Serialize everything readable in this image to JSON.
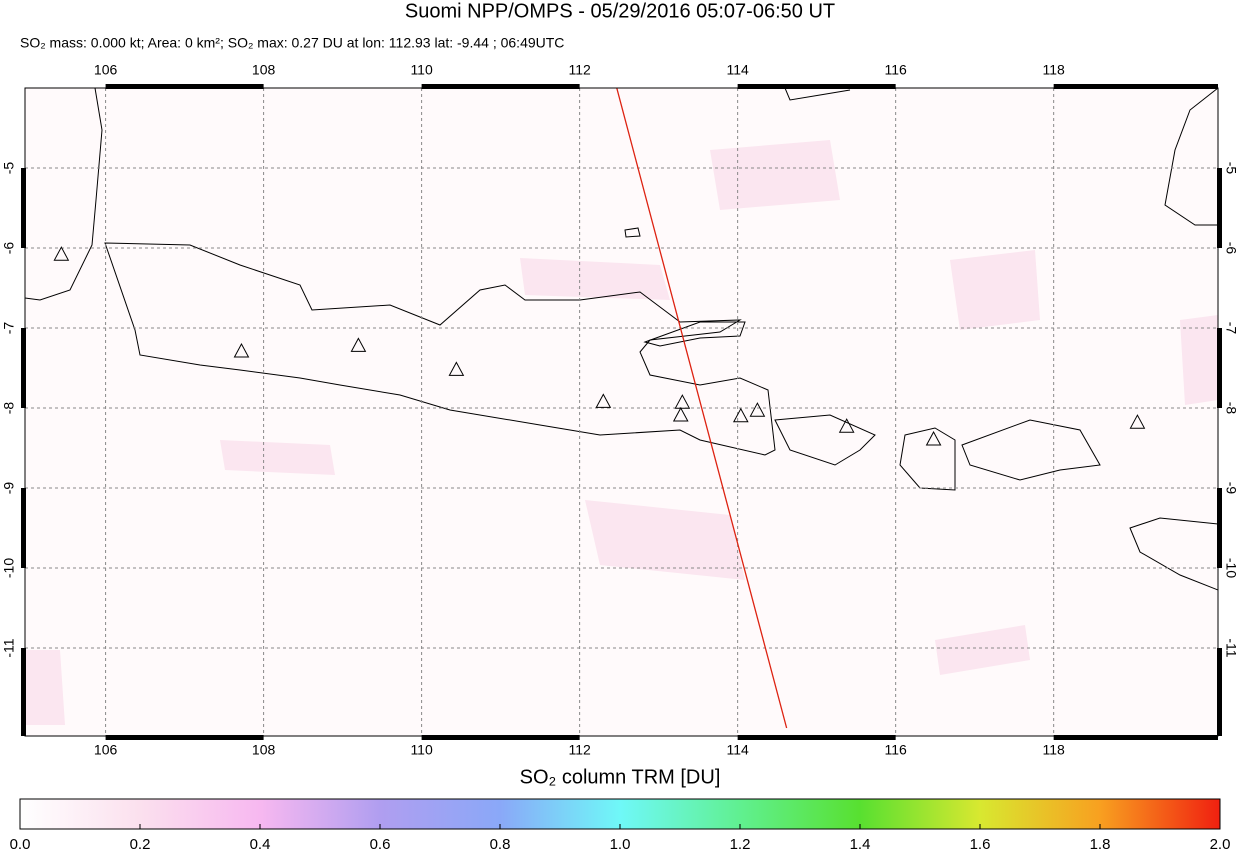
{
  "chart_data": {
    "type": "map",
    "title": "Suomi NPP/OMPS - 05/29/2016 05:07-06:50 UT",
    "subtitle": "SO₂ mass: 0.000 kt; Area: 0 km²; SO₂ max: 0.27 DU at lon: 112.93 lat: -9.44 ; 06:49UTC",
    "xlim": [
      104.98,
      120.08
    ],
    "ylim": [
      -12.1,
      -4.0
    ],
    "xticks": [
      106,
      108,
      110,
      112,
      114,
      116,
      118
    ],
    "yticks": [
      -5,
      -6,
      -7,
      -8,
      -9,
      -10,
      -11
    ],
    "grid": true,
    "volcanoes": {
      "lon": [
        105.44,
        107.72,
        109.2,
        110.44,
        112.3,
        113.3,
        113.28,
        114.04,
        114.25,
        115.38,
        116.48,
        119.06
      ],
      "lat": [
        -6.09,
        -7.3,
        -7.23,
        -7.53,
        -7.93,
        -7.94,
        -8.1,
        -8.11,
        -8.04,
        -8.24,
        -8.4,
        -8.19
      ]
    },
    "track": {
      "lon": [
        112.47,
        114.62
      ],
      "lat": [
        -4.0,
        -12.0
      ],
      "color": "#dd2211"
    },
    "colorbar": {
      "title": "SO₂ column TRM [DU]",
      "lim": [
        0,
        2
      ],
      "ticks": [
        {
          "value": 0,
          "label": "0.0"
        },
        0.2,
        0.4,
        0.6,
        0.8,
        {
          "value": 1,
          "label": "1.0"
        },
        1.2,
        1.4,
        1.6,
        1.8,
        {
          "value": 2,
          "label": "2.0"
        }
      ]
    }
  }
}
